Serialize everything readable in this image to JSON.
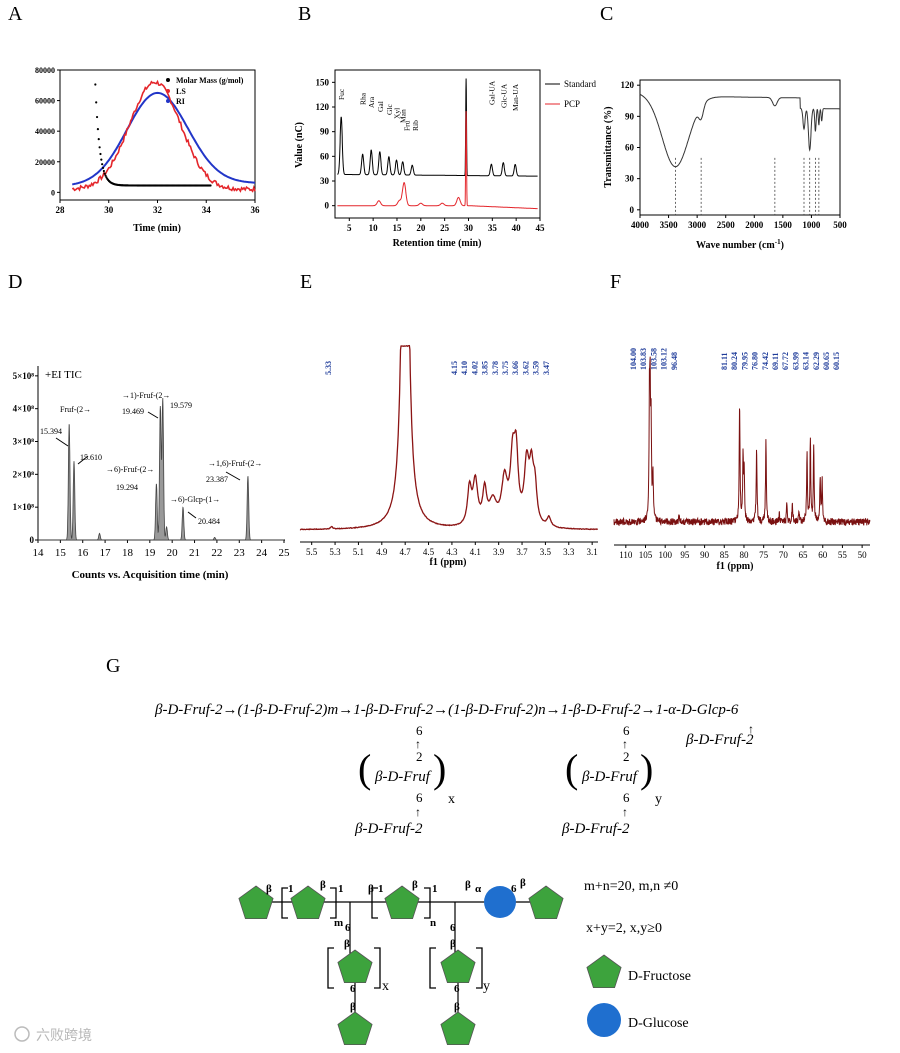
{
  "panels": {
    "A": {
      "letter": "A",
      "legend": [
        "Molar Mass (g/mol)",
        "LS",
        "RI"
      ],
      "xlabel": "Time (min)",
      "xticks": [
        "28",
        "30",
        "32",
        "34",
        "36"
      ],
      "yticks": [
        "0",
        "20000",
        "40000",
        "60000",
        "80000"
      ],
      "xlim": [
        28,
        36
      ],
      "ylim": [
        -5000,
        80000
      ],
      "colors": {
        "molar": "#000000",
        "ls": "#e4262b",
        "ri": "#2236c8"
      }
    },
    "B": {
      "letter": "B",
      "ylabel": "Value (nC)",
      "xlabel": "Retention time (min)",
      "yticks": [
        "150",
        "120",
        "90",
        "60",
        "30",
        "0"
      ],
      "xticks": [
        "5",
        "10",
        "15",
        "20",
        "25",
        "30",
        "35",
        "40",
        "45"
      ],
      "legend": [
        "Standard",
        "PCP"
      ],
      "peak_labels": [
        "Fuc",
        "Rha",
        "Ara",
        "Gal",
        "Glc",
        "Xyl",
        "Man",
        "Fru",
        "Rib",
        "Gal-UA",
        "Glc-UA",
        "Man-UA"
      ],
      "colors": {
        "standard": "#000000",
        "pcp": "#e4262b"
      }
    },
    "C": {
      "letter": "C",
      "ylabel": "Transmittance (%)",
      "xlabel": "Wave number (cm",
      "xlabel_sup": "-1",
      "xlabel_end": ")",
      "yticks": [
        "120",
        "90",
        "60",
        "30",
        "0"
      ],
      "xticks": [
        "4000",
        "3500",
        "3000",
        "2500",
        "2000",
        "1500",
        "1000",
        "500"
      ]
    },
    "D": {
      "letter": "D",
      "title": "+EI TIC",
      "xlabel": "Counts vs. Acquisition time (min)",
      "yticks": [
        "5×10⁸",
        "4×10⁸",
        "3×10⁸",
        "2×10⁸",
        "1×10⁸",
        "0"
      ],
      "xticks": [
        "14",
        "15",
        "16",
        "17",
        "18",
        "19",
        "20",
        "21",
        "22",
        "23",
        "24",
        "25"
      ],
      "annotations": [
        "Fruf-(2→",
        "15.394",
        "15.610",
        "→1)-Fruf-(2→",
        "19.469",
        "19.579",
        "→6)-Fruf-(2→",
        "19.294",
        "→6)-Glcp-(1→",
        "20.484",
        "→1,6)-Fruf-(2→",
        "23.387"
      ]
    },
    "E": {
      "letter": "E",
      "xlabel": "f1 (ppm)",
      "xticks": [
        "5.5",
        "5.3",
        "5.1",
        "4.9",
        "4.7",
        "4.5",
        "4.3",
        "4.1",
        "3.9",
        "3.7",
        "3.5",
        "3.3",
        "3.1"
      ],
      "peak_labels_left": [
        "5.33"
      ],
      "peak_labels_right": [
        "4.15",
        "4.10",
        "4.02",
        "3.85",
        "3.78",
        "3.75",
        "3.66",
        "3.62",
        "3.59",
        "3.47"
      ]
    },
    "F": {
      "letter": "F",
      "xlabel": "f1 (ppm)",
      "xticks": [
        "110",
        "105",
        "100",
        "95",
        "90",
        "85",
        "80",
        "75",
        "70",
        "65",
        "60",
        "55",
        "50"
      ],
      "peak_labels_left": [
        "104.00",
        "103.83",
        "103.58",
        "103.12",
        "96.48"
      ],
      "peak_labels_right": [
        "81.11",
        "80.24",
        "79.95",
        "76.80",
        "74.42",
        "69.11",
        "67.72",
        "63.99",
        "63.14",
        "62.29",
        "60.65",
        "60.15"
      ]
    },
    "G": {
      "letter": "G",
      "main_chain": "β-D-Fruf-2→(1-β-D-Fruf-2)m→1-β-D-Fruf-2→(1-β-D-Fruf-2)n→1-β-D-Fruf-2→1-α-D-Glcp-6",
      "glc_branch": "β-D-Fruf-2",
      "branch_unit": "β-D-Fruf",
      "branch_end": "β-D-Fruf-2",
      "sub_x": "x",
      "sub_y": "y",
      "six": "6",
      "two": "2",
      "one": "1",
      "beta": "β",
      "alpha": "α",
      "m": "m",
      "n": "n",
      "cond1": "m+n=20, m,n ≠0",
      "cond2": "x+y=2, x,y≥0",
      "legend_fructose": "D-Fructose",
      "legend_glucose": "D-Glucose",
      "colors": {
        "fructose": "#3da33d",
        "glucose": "#1f6fcf"
      }
    }
  },
  "watermark": "六败跨境"
}
